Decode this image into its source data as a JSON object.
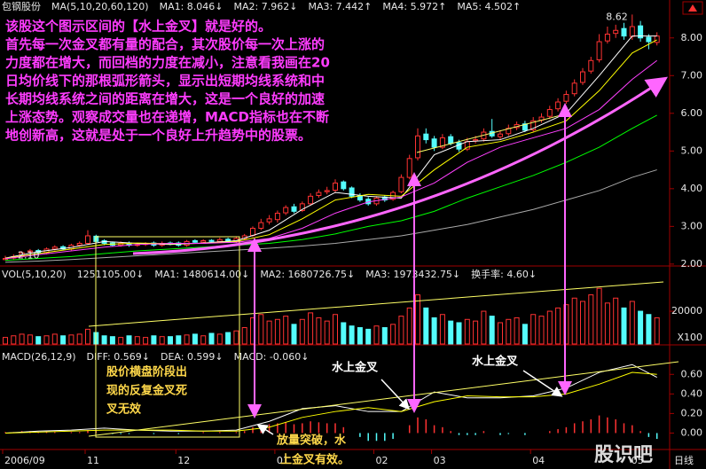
{
  "chart_data": [
    {
      "type": "candlestick",
      "header": [
        {
          "text": "包钢股份",
          "color": "#ffffff"
        },
        {
          "text": "MA(5,10,20,60,120)",
          "color": "#ffffff"
        },
        {
          "text": "MA1: 8.046↓",
          "color": "#ffffff"
        },
        {
          "text": "MA2: 7.962↓",
          "color": "#ffff00"
        },
        {
          "text": "MA3: 7.442↑",
          "color": "#ff40ff"
        },
        {
          "text": "MA4: 5.972↑",
          "color": "#00ff00"
        },
        {
          "text": "MA5: 4.502↑",
          "color": "#cccccc"
        }
      ],
      "ylim": [
        1.95,
        8.7
      ],
      "yticks": [
        {
          "value": 2,
          "label": "2.00"
        },
        {
          "value": 3,
          "label": "3.00"
        },
        {
          "value": 4,
          "label": "4.00"
        },
        {
          "value": 5,
          "label": "5.00"
        },
        {
          "value": 6,
          "label": "6.00"
        },
        {
          "value": 7,
          "label": "7.00"
        },
        {
          "value": 8,
          "label": "8.00"
        }
      ],
      "up_color": "#ff3232",
      "down_color": "#54fcfc",
      "open": [
        2.12,
        2.16,
        2.22,
        2.32,
        2.36,
        2.3,
        2.4,
        2.46,
        2.4,
        2.5,
        2.55,
        2.74,
        2.62,
        2.56,
        2.5,
        2.56,
        2.5,
        2.52,
        2.56,
        2.5,
        2.56,
        2.56,
        2.5,
        2.62,
        2.58,
        2.63,
        2.6,
        2.66,
        2.6,
        2.68,
        2.76,
        2.95,
        3.12,
        3.18,
        3.36,
        3.52,
        3.42,
        3.6,
        3.82,
        3.92,
        3.96,
        4.18,
        4.02,
        3.82,
        3.72,
        3.6,
        3.78,
        3.72,
        3.92,
        4.3,
        4.82,
        5.45,
        5.32,
        5.1,
        5.38,
        5.22,
        5.05,
        5.27,
        5.32,
        5.52,
        5.38,
        5.46,
        5.62,
        5.72,
        5.56,
        5.82,
        5.92,
        6.12,
        6.32,
        6.52,
        6.82,
        7.12,
        7.42,
        7.92,
        8.12,
        8.25,
        8.04,
        8.32,
        8.02,
        7.88
      ],
      "high": [
        2.22,
        2.26,
        2.34,
        2.4,
        2.4,
        2.44,
        2.5,
        2.5,
        2.54,
        2.6,
        2.9,
        2.78,
        2.66,
        2.6,
        2.6,
        2.6,
        2.56,
        2.58,
        2.6,
        2.6,
        2.6,
        2.6,
        2.64,
        2.66,
        2.66,
        2.66,
        2.7,
        2.7,
        2.72,
        2.8,
        3.0,
        3.2,
        3.3,
        3.42,
        3.56,
        3.6,
        3.66,
        3.88,
        3.98,
        4.05,
        4.25,
        4.22,
        4.06,
        3.88,
        3.78,
        3.8,
        3.82,
        3.95,
        4.38,
        4.9,
        5.6,
        5.6,
        5.4,
        5.45,
        5.45,
        5.3,
        5.35,
        5.4,
        5.6,
        5.85,
        5.55,
        5.7,
        5.78,
        5.8,
        5.9,
        6.0,
        6.2,
        6.4,
        6.6,
        6.9,
        7.2,
        7.5,
        8.1,
        8.3,
        8.35,
        8.4,
        8.62,
        8.45,
        8.1,
        8.15
      ],
      "low": [
        2.1,
        2.12,
        2.18,
        2.28,
        2.26,
        2.26,
        2.36,
        2.36,
        2.36,
        2.46,
        2.52,
        2.56,
        2.5,
        2.46,
        2.46,
        2.46,
        2.46,
        2.48,
        2.46,
        2.46,
        2.5,
        2.46,
        2.46,
        2.54,
        2.54,
        2.56,
        2.56,
        2.56,
        2.56,
        2.64,
        2.72,
        2.9,
        3.05,
        3.1,
        3.3,
        3.35,
        3.38,
        3.55,
        3.76,
        3.85,
        3.9,
        3.95,
        3.75,
        3.65,
        3.55,
        3.55,
        3.65,
        3.68,
        3.88,
        4.25,
        4.75,
        5.2,
        5.0,
        5.05,
        5.15,
        4.98,
        5.0,
        5.2,
        5.25,
        5.35,
        5.3,
        5.4,
        5.55,
        5.5,
        5.5,
        5.75,
        5.85,
        6.05,
        6.25,
        6.45,
        6.75,
        7.05,
        7.35,
        7.85,
        8.0,
        7.95,
        7.95,
        7.9,
        7.7,
        7.8
      ],
      "close": [
        2.15,
        2.2,
        2.3,
        2.35,
        2.3,
        2.4,
        2.45,
        2.4,
        2.5,
        2.55,
        2.75,
        2.6,
        2.55,
        2.5,
        2.55,
        2.5,
        2.52,
        2.55,
        2.5,
        2.55,
        2.55,
        2.5,
        2.6,
        2.58,
        2.62,
        2.6,
        2.65,
        2.6,
        2.68,
        2.75,
        2.95,
        3.1,
        3.2,
        3.35,
        3.5,
        3.4,
        3.6,
        3.8,
        3.9,
        3.95,
        4.15,
        4.0,
        3.8,
        3.7,
        3.6,
        3.75,
        3.7,
        3.9,
        4.3,
        4.8,
        5.4,
        5.3,
        5.1,
        5.35,
        5.2,
        5.05,
        5.25,
        5.3,
        5.5,
        5.4,
        5.45,
        5.6,
        5.7,
        5.55,
        5.8,
        5.9,
        6.1,
        6.3,
        6.5,
        6.8,
        7.1,
        7.4,
        7.9,
        8.1,
        8.2,
        8.05,
        8.3,
        8.0,
        7.9,
        8.05
      ],
      "max_label": "8.62",
      "min_label": "2.10",
      "ma": {
        "x": [
          0,
          4,
          8,
          12,
          16,
          20,
          24,
          28,
          32,
          36,
          40,
          44,
          48,
          52,
          56,
          60,
          64,
          68,
          72,
          76,
          79
        ],
        "series": [
          {
            "color": "#ffffff",
            "values": [
              2.16,
              2.33,
              2.44,
              2.6,
              2.55,
              2.52,
              2.56,
              2.62,
              2.9,
              3.45,
              3.9,
              3.8,
              3.75,
              4.9,
              5.25,
              5.3,
              5.6,
              6.0,
              7.0,
              8.05,
              8.05
            ]
          },
          {
            "color": "#ffff00",
            "values": [
              2.15,
              2.28,
              2.4,
              2.52,
              2.56,
              2.54,
              2.55,
              2.6,
              2.78,
              3.2,
              3.7,
              3.85,
              3.8,
              4.5,
              5.1,
              5.25,
              5.5,
              5.8,
              6.6,
              7.6,
              7.95
            ]
          },
          {
            "color": "#ff40ff",
            "values": [
              2.14,
              2.25,
              2.35,
              2.45,
              2.52,
              2.55,
              2.55,
              2.58,
              2.68,
              2.95,
              3.35,
              3.65,
              3.78,
              4.15,
              4.7,
              5.1,
              5.35,
              5.6,
              6.1,
              6.9,
              7.4
            ]
          },
          {
            "color": "#00ff00",
            "values": [
              2.1,
              2.15,
              2.2,
              2.28,
              2.35,
              2.4,
              2.45,
              2.5,
              2.55,
              2.65,
              2.8,
              3.0,
              3.15,
              3.4,
              3.75,
              4.05,
              4.35,
              4.7,
              5.1,
              5.6,
              5.95
            ]
          },
          {
            "color": "#aaaaaa",
            "values": [
              2.05,
              2.08,
              2.12,
              2.17,
              2.22,
              2.27,
              2.32,
              2.37,
              2.42,
              2.48,
              2.55,
              2.65,
              2.75,
              2.9,
              3.05,
              3.25,
              3.45,
              3.7,
              3.95,
              4.3,
              4.5
            ]
          }
        ]
      }
    },
    {
      "type": "bar",
      "header": [
        {
          "text": "VOL(5,10,20)",
          "color": "#ffffff"
        },
        {
          "text": "1251105.00↓",
          "color": "#ffffff"
        },
        {
          "text": "MA1: 1480614.00↓",
          "color": "#ffffff"
        },
        {
          "text": "MA2: 1680726.75↓",
          "color": "#ffff00"
        },
        {
          "text": "MA3: 1973432.75↓",
          "color": "#ff40ff"
        },
        {
          "text": "换手率: 4.60↓",
          "color": "#ffffff"
        }
      ],
      "unit_label": "X100",
      "ylim": [
        0,
        46000
      ],
      "yticks": [
        20000
      ],
      "values": [
        4000,
        5000,
        6000,
        5500,
        4500,
        5000,
        6000,
        5000,
        5500,
        6000,
        9000,
        7000,
        5000,
        4500,
        4000,
        5000,
        4500,
        4000,
        5000,
        4500,
        4500,
        5000,
        5500,
        6000,
        5000,
        6500,
        6000,
        7000,
        8000,
        10000,
        16000,
        18000,
        14000,
        15000,
        17000,
        12000,
        15000,
        19000,
        16000,
        14000,
        18000,
        13000,
        11000,
        10000,
        9000,
        11000,
        10000,
        12000,
        17000,
        22000,
        30000,
        22000,
        16000,
        18000,
        14000,
        13000,
        15000,
        14000,
        20000,
        17000,
        13000,
        15000,
        16000,
        12000,
        18000,
        17000,
        20000,
        22000,
        24000,
        28000,
        26000,
        30000,
        34000,
        25000,
        28000,
        22000,
        26000,
        20000,
        18000,
        16000
      ]
    },
    {
      "type": "macd",
      "header": [
        {
          "text": "MACD(26,12,9)",
          "color": "#ffffff"
        },
        {
          "text": "DIFF: 0.569↓",
          "color": "#ffffff"
        },
        {
          "text": "DEA: 0.599↓",
          "color": "#ffff00"
        },
        {
          "text": "MACD: -0.060↓",
          "color": "#ff40ff"
        }
      ],
      "ylim": [
        -0.15,
        0.82
      ],
      "yticks": [
        {
          "value": 0,
          "label": "0.00"
        },
        {
          "value": 0.2,
          "label": "0.20"
        },
        {
          "value": 0.4,
          "label": "0.40"
        },
        {
          "value": 0.6,
          "label": "0.60"
        }
      ],
      "categories": [
        "2006/09",
        null,
        null,
        null,
        null,
        null,
        null,
        null,
        null,
        null,
        "11",
        null,
        null,
        null,
        null,
        null,
        null,
        null,
        null,
        null,
        null,
        "12",
        null,
        null,
        null,
        null,
        null,
        null,
        null,
        null,
        null,
        null,
        null,
        "01",
        null,
        null,
        null,
        null,
        null,
        null,
        null,
        null,
        null,
        null,
        null,
        "02",
        null,
        null,
        null,
        null,
        null,
        null,
        "03",
        null,
        null,
        null,
        null,
        null,
        null,
        null,
        null,
        null,
        null,
        null,
        "04",
        null,
        null,
        null,
        null,
        null,
        null,
        null,
        null,
        null,
        null,
        null,
        "05",
        null,
        null,
        null
      ],
      "end_label": "日线",
      "values": [
        0.01,
        0.01,
        0.02,
        0.02,
        0.01,
        0.01,
        0.01,
        0.0,
        0.01,
        0.01,
        0.03,
        0.02,
        0.0,
        -0.01,
        -0.01,
        -0.01,
        0.0,
        0.0,
        -0.01,
        0.0,
        0.0,
        -0.01,
        0.0,
        0.0,
        0.01,
        0.0,
        0.01,
        0.0,
        0.01,
        0.02,
        0.06,
        0.08,
        0.09,
        0.1,
        0.11,
        0.09,
        0.1,
        0.12,
        0.11,
        0.1,
        0.1,
        0.06,
        0.0,
        -0.04,
        -0.08,
        -0.08,
        -0.08,
        -0.06,
        0.0,
        0.08,
        0.16,
        0.14,
        0.08,
        0.06,
        0.02,
        -0.02,
        -0.02,
        -0.02,
        0.02,
        0.0,
        -0.02,
        -0.01,
        0.0,
        -0.02,
        0.0,
        0.0,
        0.02,
        0.04,
        0.06,
        0.1,
        0.12,
        0.14,
        0.18,
        0.16,
        0.14,
        0.1,
        0.08,
        0.02,
        -0.04,
        -0.06
      ],
      "lines": {
        "x": [
          0,
          4,
          8,
          12,
          16,
          20,
          24,
          28,
          32,
          36,
          40,
          44,
          48,
          52,
          56,
          60,
          64,
          68,
          72,
          76,
          79
        ],
        "series": [
          {
            "color": "#ffffff",
            "values": [
              0.0,
              0.02,
              0.03,
              0.05,
              0.03,
              0.02,
              0.02,
              0.03,
              0.12,
              0.25,
              0.28,
              0.22,
              0.22,
              0.42,
              0.36,
              0.36,
              0.38,
              0.46,
              0.62,
              0.7,
              0.57
            ]
          },
          {
            "color": "#ffff00",
            "values": [
              0.0,
              0.01,
              0.02,
              0.03,
              0.03,
              0.03,
              0.02,
              0.02,
              0.06,
              0.16,
              0.22,
              0.26,
              0.22,
              0.32,
              0.38,
              0.37,
              0.37,
              0.4,
              0.5,
              0.62,
              0.6
            ]
          }
        ]
      }
    }
  ],
  "annotations": {
    "main": [
      "该股这个图示区间的【水上金叉】就是好的。",
      "首先每一次金叉都有量的配合，其次股价每一次上涨的",
      "力度都在增大，而回档的力度在减小，注意看我画在20",
      "日均价线下的那根弧形箭头，显示出短期均线系统和中",
      "长期均线系统之间的距离在增大，这是一个良好的加速",
      "上涨态势。观察成交量也在递增，MACD指标也在不断",
      "地创新高，这就是处于一个良好上升趋势中的股票。"
    ],
    "sideways": [
      "股价横盘阶段出",
      "现的反复金叉死",
      "叉无效"
    ],
    "cross_1": "水上金叉",
    "cross_2": "水上金叉",
    "breakout": [
      "放量突破，水",
      "上金叉有效。"
    ],
    "watermark": "股识吧"
  }
}
